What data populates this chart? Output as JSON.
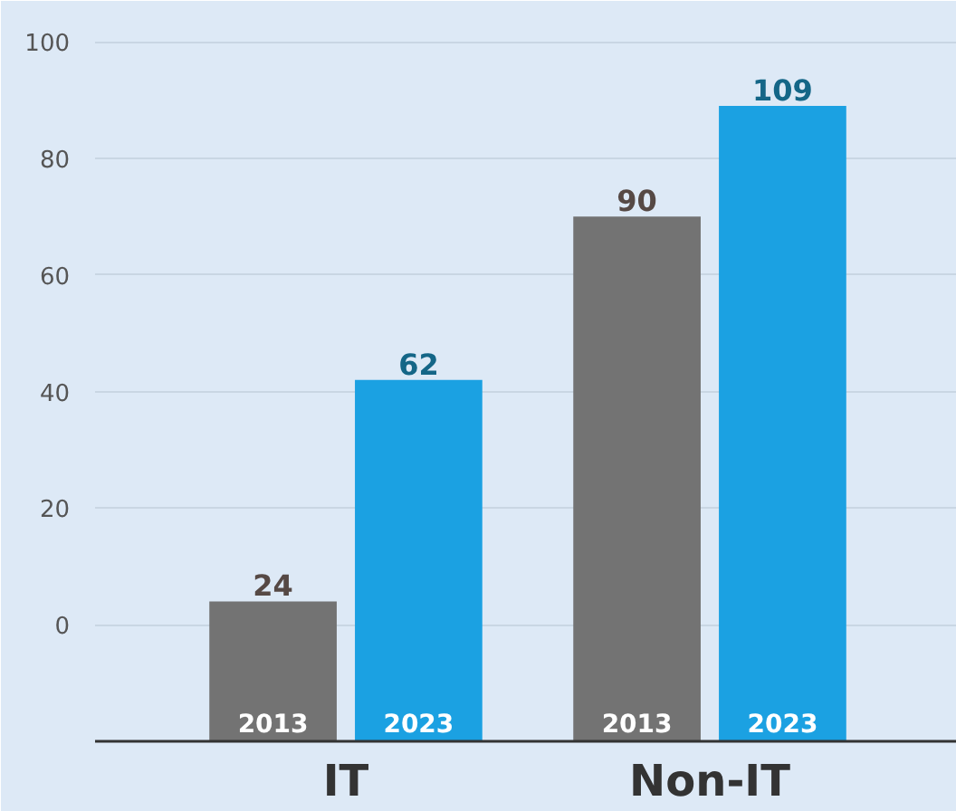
{
  "chart_data": {
    "type": "bar",
    "categories": [
      "IT",
      "Non-IT"
    ],
    "series": [
      {
        "name": "2013",
        "color": "#737373",
        "values": [
          24,
          90
        ],
        "base": [
          -20,
          -20
        ]
      },
      {
        "name": "2023",
        "color": "#1ba1e2",
        "values": [
          62,
          109
        ],
        "base": [
          -20,
          -20
        ]
      }
    ],
    "ylim": [
      -20,
      107
    ],
    "yticks": [
      0,
      20,
      40,
      60,
      80,
      100
    ],
    "grid": "y",
    "data_labels": true
  }
}
